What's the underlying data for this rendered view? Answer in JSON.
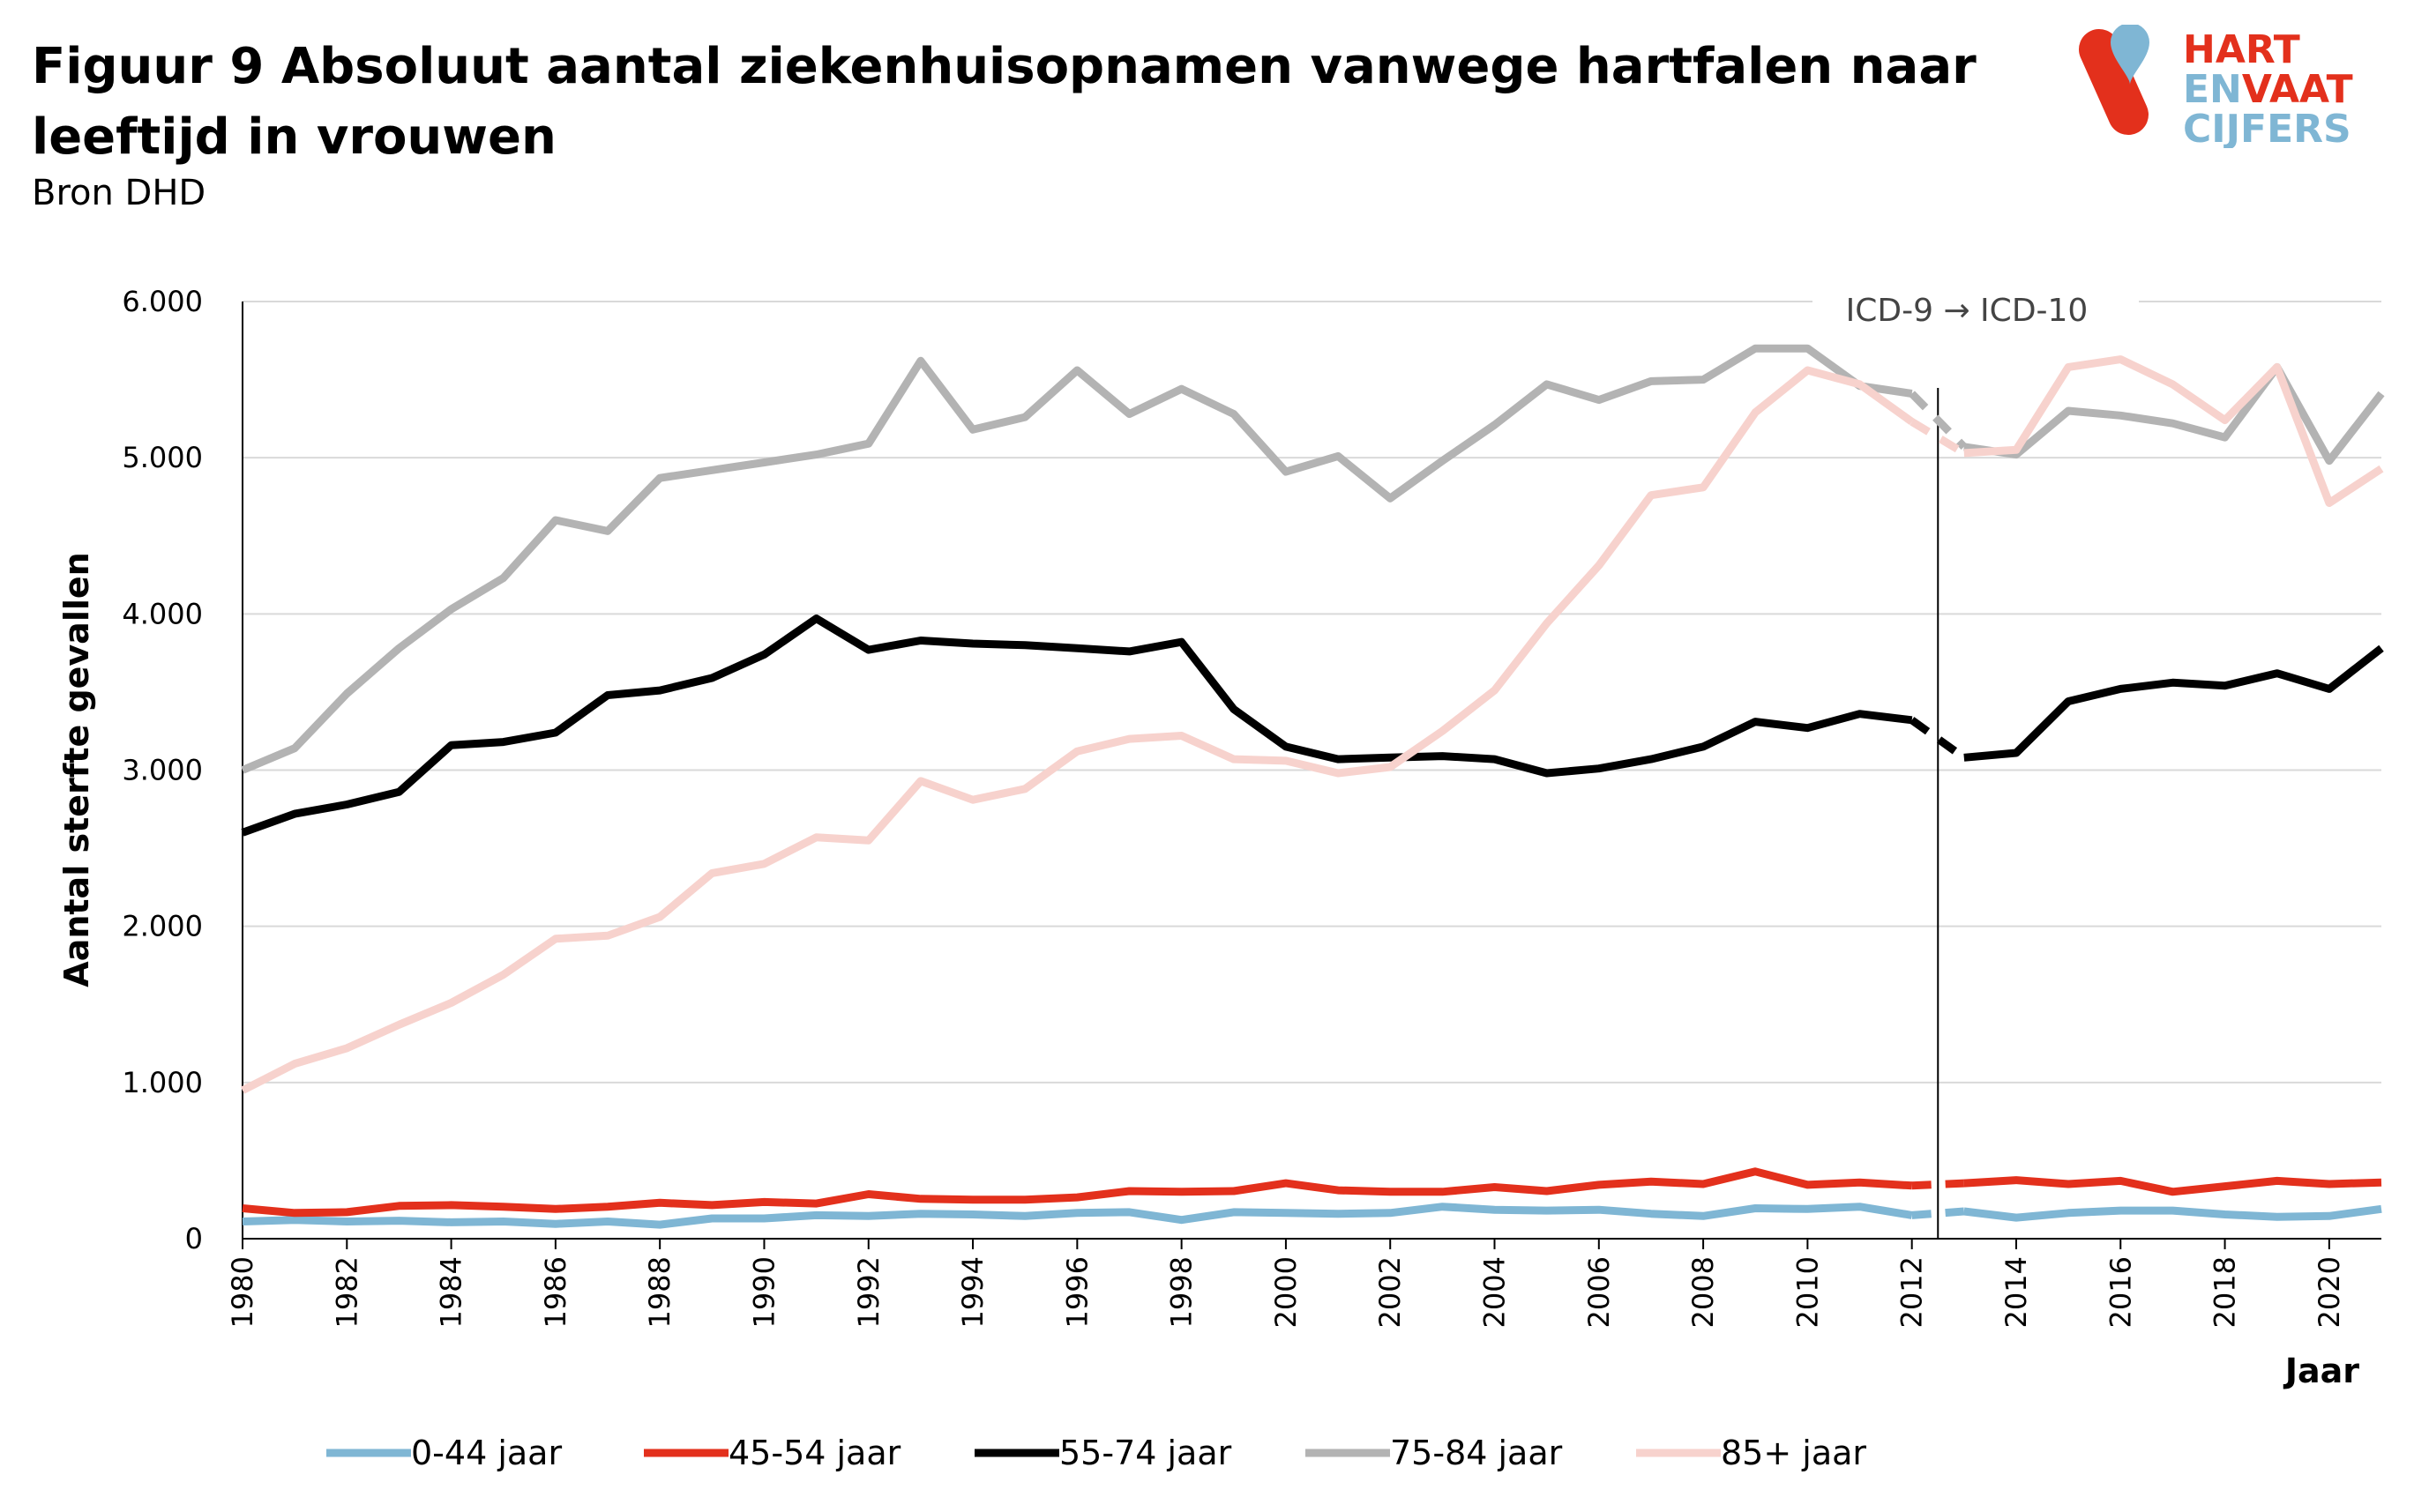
{
  "title": "Figuur 9  Absoluut aantal ziekenhuisopnamen vanwege hartfalen naar leeftijd in vrouwen",
  "source": "Bron DHD",
  "logo": {
    "line1": "HART",
    "line2a": "EN",
    "line2b": "VAAT",
    "line3": "CIJFERS",
    "colors": {
      "red": "#e3301c",
      "blue": "#7fb6d4"
    }
  },
  "chart_data": {
    "type": "line",
    "ylabel": "Aantal sterfte gevallen",
    "xlabel": "Jaar",
    "ylim": [
      0,
      6000
    ],
    "xlim": [
      1980,
      2021
    ],
    "y_ticks": [
      0,
      1000,
      2000,
      3000,
      4000,
      5000,
      6000
    ],
    "y_tick_labels": [
      "0",
      "1.000",
      "2.000",
      "3.000",
      "4.000",
      "5.000",
      "6.000"
    ],
    "x_ticks": [
      1980,
      1982,
      1984,
      1986,
      1988,
      1990,
      1992,
      1994,
      1996,
      1998,
      2000,
      2002,
      2004,
      2006,
      2008,
      2010,
      2012,
      2014,
      2016,
      2018,
      2020
    ],
    "x_tick_labels": [
      "1980",
      "1982",
      "1984",
      "1986",
      "1988",
      "1990",
      "1992",
      "1994",
      "1996",
      "1998",
      "2000",
      "2002",
      "2004",
      "2006",
      "2008",
      "2010",
      "2012",
      "2014",
      "2016",
      "2018",
      "2020"
    ],
    "grid": "horizontal",
    "legend_position": "bottom",
    "annotation": {
      "text": "ICD-9 → ICD-10",
      "x_between": [
        2012,
        2013
      ]
    },
    "x": [
      1980,
      1981,
      1982,
      1983,
      1984,
      1985,
      1986,
      1987,
      1988,
      1989,
      1990,
      1991,
      1992,
      1993,
      1994,
      1995,
      1996,
      1997,
      1998,
      1999,
      2000,
      2001,
      2002,
      2003,
      2004,
      2005,
      2006,
      2007,
      2008,
      2009,
      2010,
      2011,
      2012,
      2013,
      2014,
      2015,
      2016,
      2017,
      2018,
      2019,
      2020,
      2021
    ],
    "series": [
      {
        "name": "0-44 jaar",
        "color": "#7fb6d4",
        "values": [
          110,
          120,
          110,
          115,
          105,
          110,
          95,
          110,
          90,
          130,
          130,
          150,
          145,
          160,
          155,
          145,
          165,
          170,
          120,
          170,
          165,
          160,
          165,
          205,
          185,
          180,
          185,
          160,
          145,
          195,
          190,
          205,
          150,
          175,
          135,
          165,
          180,
          180,
          155,
          140,
          145,
          190
        ]
      },
      {
        "name": "45-54 jaar",
        "color": "#e3301c",
        "values": [
          195,
          165,
          170,
          210,
          215,
          205,
          190,
          205,
          230,
          215,
          235,
          225,
          285,
          255,
          250,
          250,
          265,
          305,
          300,
          305,
          355,
          310,
          300,
          300,
          330,
          305,
          345,
          365,
          350,
          430,
          345,
          360,
          340,
          355,
          375,
          350,
          370,
          300,
          335,
          370,
          350,
          360
        ]
      },
      {
        "name": "55-74 jaar",
        "color": "#000000",
        "values": [
          2600,
          2720,
          2780,
          2860,
          3160,
          3180,
          3240,
          3480,
          3510,
          3590,
          3740,
          3970,
          3770,
          3830,
          3810,
          3800,
          3780,
          3760,
          3820,
          3390,
          3150,
          3070,
          3080,
          3090,
          3070,
          2980,
          3010,
          3070,
          3150,
          3310,
          3270,
          3360,
          3320,
          3080,
          3110,
          3440,
          3520,
          3560,
          3540,
          3620,
          3520,
          3780
        ]
      },
      {
        "name": "75-84 jaar",
        "color": "#b3b3b3",
        "values": [
          3000,
          3140,
          3490,
          3780,
          4030,
          4230,
          4600,
          4530,
          4870,
          4920,
          4970,
          5020,
          5090,
          5620,
          5180,
          5260,
          5560,
          5280,
          5440,
          5280,
          4910,
          5010,
          4740,
          4980,
          5210,
          5470,
          5370,
          5490,
          5500,
          5700,
          5700,
          5460,
          5410,
          5070,
          5020,
          5300,
          5270,
          5220,
          5130,
          5580,
          4980,
          5410
        ]
      },
      {
        "name": "85+ jaar",
        "color": "#f7d2cd",
        "values": [
          950,
          1120,
          1220,
          1370,
          1510,
          1690,
          1920,
          1940,
          2060,
          2340,
          2400,
          2570,
          2550,
          2930,
          2810,
          2880,
          3120,
          3200,
          3220,
          3070,
          3060,
          2980,
          3020,
          3250,
          3510,
          3940,
          4310,
          4760,
          4810,
          5290,
          5560,
          5470,
          5230,
          5030,
          5050,
          5580,
          5630,
          5470,
          5240,
          5580,
          4710,
          4930
        ]
      }
    ]
  }
}
